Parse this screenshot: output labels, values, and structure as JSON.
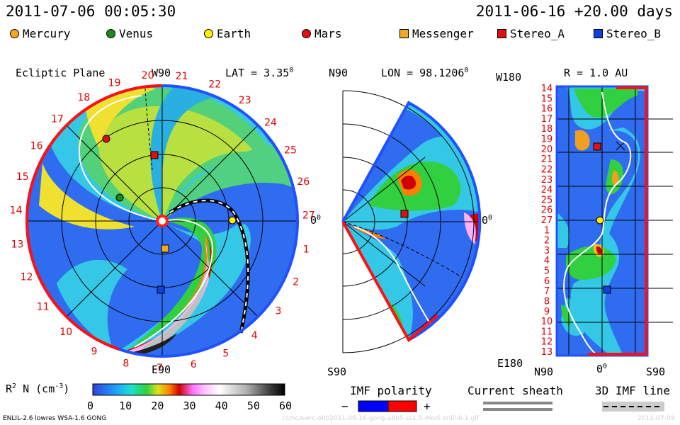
{
  "header": {
    "datetime": "2011-07-06 00:05:30",
    "run_label": "2011-06-16 +20.00 days"
  },
  "legend": [
    {
      "label": "Mercury",
      "color": "#f5a623",
      "shape": "circle"
    },
    {
      "label": "Venus",
      "color": "#1a8a1a",
      "shape": "circle"
    },
    {
      "label": "Earth",
      "color": "#ffee00",
      "shape": "circle"
    },
    {
      "label": "Mars",
      "color": "#e01010",
      "shape": "circle"
    },
    {
      "label": "Messenger",
      "color": "#f5a623",
      "shape": "square"
    },
    {
      "label": "Stereo_A",
      "color": "#e01010",
      "shape": "square"
    },
    {
      "label": "Stereo_B",
      "color": "#1040e0",
      "shape": "square"
    }
  ],
  "ecliptic_panel": {
    "title": "Ecliptic Plane",
    "top_label": "W90",
    "bottom_label": "E90",
    "right_label": "0",
    "right_label_sup": "0",
    "lat_label": "LAT = 3.35",
    "lat_sup": "0",
    "carrington_ticks": [
      "19",
      "20",
      "21",
      "22",
      "23",
      "24",
      "25",
      "26",
      "27",
      "1",
      "2",
      "3",
      "4",
      "5",
      "6",
      "7",
      "8",
      "9",
      "10",
      "11",
      "12",
      "13",
      "14",
      "15",
      "16",
      "17",
      "18"
    ]
  },
  "meridional_panel": {
    "top_label": "N90",
    "bottom_label": "S90",
    "right_label": "0",
    "right_label_sup": "0",
    "lon_label": "LON = 98.1206",
    "lon_sup": "0"
  },
  "radial_panel": {
    "r_label": "R = 1.0 AU",
    "top_left_label": "W180",
    "bottom_left_label": "E180",
    "x_labels": [
      "N90",
      "0",
      "S90"
    ],
    "x_label_sup": "0",
    "left_ticks": [
      "14",
      "15",
      "16",
      "17",
      "18",
      "19",
      "20",
      "21",
      "22",
      "23",
      "24",
      "25",
      "26",
      "27",
      "1",
      "2",
      "3",
      "4",
      "5",
      "6",
      "7",
      "8",
      "9",
      "10",
      "11",
      "12",
      "13"
    ]
  },
  "colorbar": {
    "title": "R",
    "title_sup": "2",
    "title_rest": " N (cm",
    "title_exp": "-3",
    "title_close": ")",
    "tick_labels": [
      "0",
      "10",
      "20",
      "30",
      "40",
      "50",
      "60"
    ],
    "colors": [
      "#3030d0",
      "#2090ff",
      "#20e0e0",
      "#20d040",
      "#e0e020",
      "#ff8000",
      "#d00000",
      "#ff70ff",
      "#ffc0ff",
      "#ffffff",
      "#c0c0c0",
      "#808080",
      "#303030",
      "#000000"
    ]
  },
  "imf_polarity": {
    "label": "IMF polarity",
    "minus": "−",
    "plus": "+",
    "colors": [
      "#0000ff",
      "#ff0000"
    ]
  },
  "current_sheath": {
    "label": "Current sheath"
  },
  "imf_line": {
    "label": "3D IMF line"
  },
  "footer": {
    "left": "ENLIL-2.6 lowres WSA-1.6 GONG",
    "right": "ccmc/swrc-old/2011-06-16-gong-a6b5-ss1.5-modi enlil-b-1.gif",
    "date": "2011-07-09"
  }
}
